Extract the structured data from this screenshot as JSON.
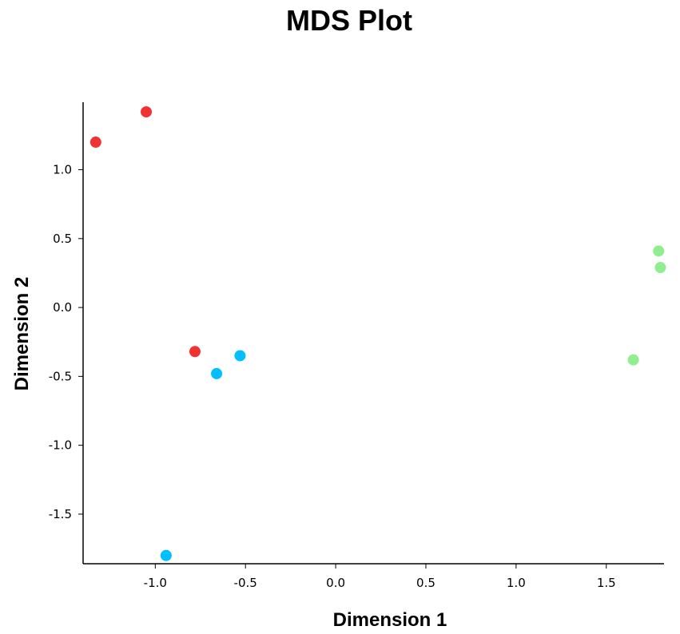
{
  "chart_data": {
    "type": "scatter",
    "title": "MDS Plot",
    "xlabel": "Dimension 1",
    "ylabel": "Dimension 2",
    "xlim": [
      -1.4,
      1.82
    ],
    "ylim": [
      -1.86,
      1.49
    ],
    "xticks": [
      -1.0,
      -0.5,
      0.0,
      0.5,
      1.0,
      1.5
    ],
    "yticks": [
      -1.5,
      -1.0,
      -0.5,
      0.0,
      0.5,
      1.0
    ],
    "grid": false,
    "series": [
      {
        "color": "#f23232",
        "points": [
          {
            "x": -1.33,
            "y": 1.2
          },
          {
            "x": -1.05,
            "y": 1.42
          },
          {
            "x": -0.78,
            "y": -0.32
          }
        ]
      },
      {
        "color": "#00bfff",
        "points": [
          {
            "x": -0.53,
            "y": -0.35
          },
          {
            "x": -0.66,
            "y": -0.48
          },
          {
            "x": -0.94,
            "y": -1.8
          }
        ]
      },
      {
        "color": "#90ee90",
        "points": [
          {
            "x": 1.79,
            "y": 0.41
          },
          {
            "x": 1.8,
            "y": 0.29
          },
          {
            "x": 1.65,
            "y": -0.38
          }
        ]
      }
    ]
  }
}
